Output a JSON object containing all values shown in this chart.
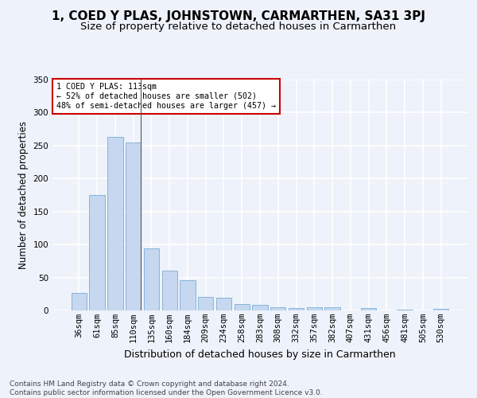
{
  "title": "1, COED Y PLAS, JOHNSTOWN, CARMARTHEN, SA31 3PJ",
  "subtitle": "Size of property relative to detached houses in Carmarthen",
  "xlabel": "Distribution of detached houses by size in Carmarthen",
  "ylabel": "Number of detached properties",
  "categories": [
    "36sqm",
    "61sqm",
    "85sqm",
    "110sqm",
    "135sqm",
    "160sqm",
    "184sqm",
    "209sqm",
    "234sqm",
    "258sqm",
    "283sqm",
    "308sqm",
    "332sqm",
    "357sqm",
    "382sqm",
    "407sqm",
    "431sqm",
    "456sqm",
    "481sqm",
    "505sqm",
    "530sqm"
  ],
  "values": [
    27,
    175,
    263,
    255,
    94,
    60,
    46,
    20,
    19,
    10,
    8,
    5,
    4,
    5,
    5,
    0,
    4,
    0,
    1,
    0,
    2
  ],
  "bar_color": "#c5d8f0",
  "bar_edge_color": "#7aadd4",
  "highlight_bar_index": 3,
  "highlight_line_color": "#555555",
  "annotation_text": "1 COED Y PLAS: 113sqm\n← 52% of detached houses are smaller (502)\n48% of semi-detached houses are larger (457) →",
  "annotation_box_color": "#ffffff",
  "annotation_box_edge_color": "#cc0000",
  "background_color": "#eef2fa",
  "grid_color": "#ffffff",
  "footer_text": "Contains HM Land Registry data © Crown copyright and database right 2024.\nContains public sector information licensed under the Open Government Licence v3.0.",
  "ylim": [
    0,
    350
  ],
  "title_fontsize": 11,
  "subtitle_fontsize": 9.5,
  "xlabel_fontsize": 9,
  "ylabel_fontsize": 8.5,
  "tick_fontsize": 7.5,
  "footer_fontsize": 6.5
}
